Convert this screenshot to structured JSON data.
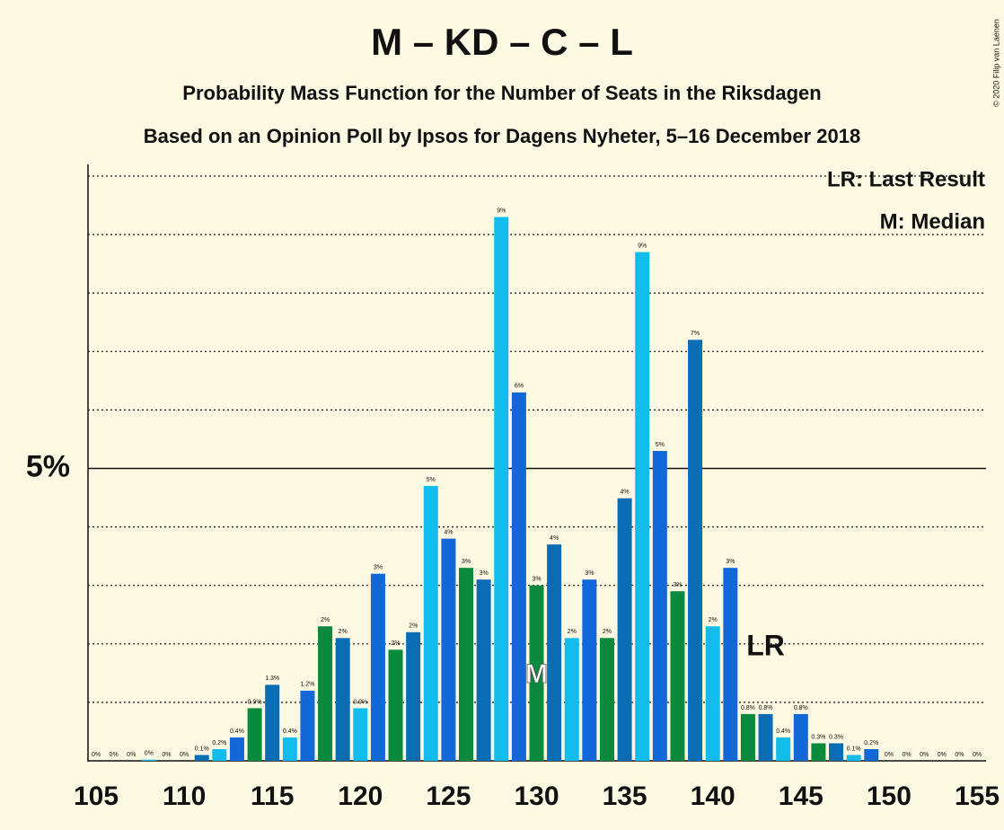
{
  "chart_data": {
    "type": "bar",
    "title": "M – KD – C – L",
    "subtitle": "Probability Mass Function for the Number of Seats in the Riksdagen",
    "subtitle2": "Based on an Opinion Poll by Ipsos for Dagens Nyheter, 5–16 December 2018",
    "copyright": "© 2020 Filip van Laenen",
    "legend": [
      "LR: Last Result",
      "M: Median"
    ],
    "categories": [
      105,
      106,
      107,
      108,
      109,
      110,
      111,
      112,
      113,
      114,
      115,
      116,
      117,
      118,
      119,
      120,
      121,
      122,
      123,
      124,
      125,
      126,
      127,
      128,
      129,
      130,
      131,
      132,
      133,
      134,
      135,
      136,
      137,
      138,
      139,
      140,
      141,
      142,
      143,
      144,
      145,
      146,
      147,
      148,
      149,
      150,
      151,
      152,
      153,
      154,
      155
    ],
    "values": [
      0,
      0,
      0,
      0.02,
      0,
      0,
      0.1,
      0.2,
      0.4,
      0.9,
      1.3,
      0.4,
      1.2,
      2.3,
      2.1,
      0.9,
      3.2,
      1.9,
      2.2,
      4.7,
      3.8,
      3.3,
      3.1,
      9.3,
      6.3,
      3.0,
      3.7,
      2.1,
      3.1,
      2.1,
      4.49,
      8.7,
      5.3,
      2.9,
      7.2,
      2.3,
      3.3,
      0.8,
      0.8,
      0.4,
      0.8,
      0.3,
      0.3,
      0.1,
      0.2,
      0,
      0,
      0,
      0,
      0,
      0
    ],
    "value_labels": [
      "0%",
      "0%",
      "0%",
      "0%",
      "0%",
      "0%",
      "0.1%",
      "0.2%",
      "0.4%",
      "0.9%",
      "1.3%",
      "0.4%",
      "1.2%",
      "2%",
      "2%",
      "0.9%",
      "3%",
      "2%",
      "2%",
      "5%",
      "4%",
      "3%",
      "3%",
      "9%",
      "6%",
      "3%",
      "4%",
      "2%",
      "3%",
      "2%",
      "4%",
      "9%",
      "5%",
      "3%",
      "7%",
      "2%",
      "3%",
      "0.8%",
      "0.8%",
      "0.4%",
      "0.8%",
      "0.3%",
      "0.3%",
      "0.1%",
      "0.2%",
      "0%",
      "0%",
      "0%",
      "0%",
      "0%",
      "0%"
    ],
    "color_cycle": [
      "#1268d8",
      "#0a8a3c",
      "#0a6cb2",
      "#12bdee"
    ],
    "xlim": [
      105,
      155
    ],
    "xticks": [
      105,
      110,
      115,
      120,
      125,
      130,
      135,
      140,
      145,
      150,
      155
    ],
    "ylim": [
      0,
      10.2
    ],
    "yticks": [
      {
        "value": 5,
        "label": "5%"
      }
    ],
    "grid_lines": [
      1,
      2,
      3,
      4,
      6,
      7,
      8,
      9,
      10
    ],
    "annotations": [
      {
        "seat": 130,
        "label": "M"
      },
      {
        "seat": 143,
        "label": "LR"
      }
    ]
  }
}
